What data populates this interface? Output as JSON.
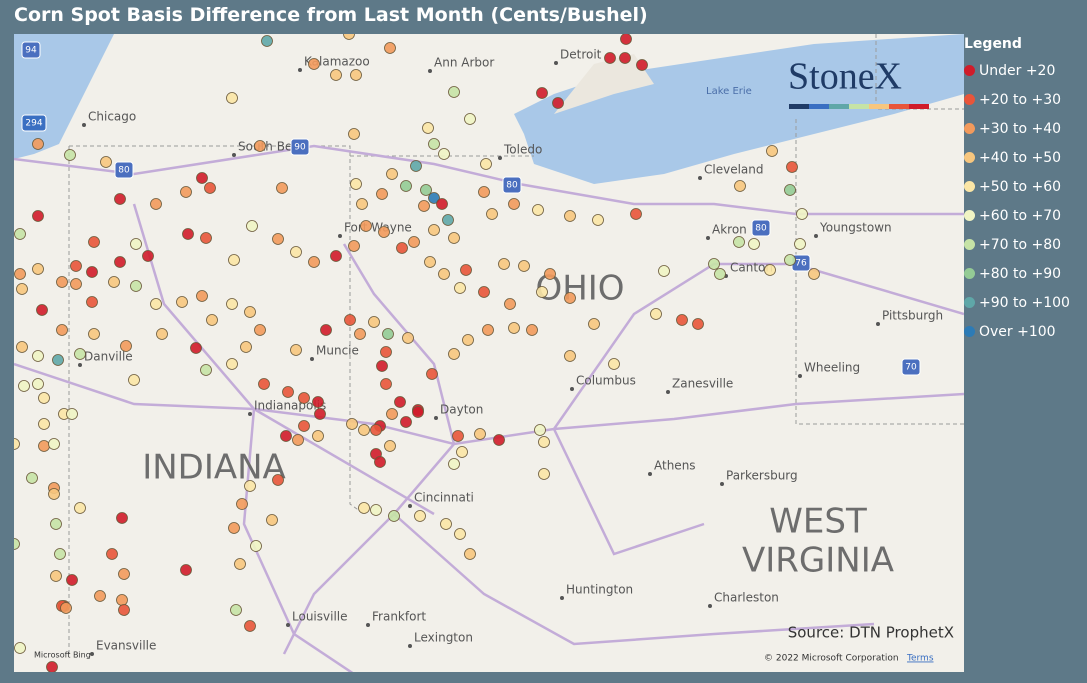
{
  "title": "Corn Spot Basis Difference from Last Month (Cents/Bushel)",
  "legend": {
    "title": "Legend",
    "items": [
      {
        "label": "Under +20",
        "color": "#d01c2a"
      },
      {
        "label": "+20 to +30",
        "color": "#e8553a"
      },
      {
        "label": "+30 to +40",
        "color": "#f29a5c"
      },
      {
        "label": "+40 to +50",
        "color": "#f7c67e"
      },
      {
        "label": "+50 to +60",
        "color": "#fbe6a6"
      },
      {
        "label": "+60 to +70",
        "color": "#f0f4c4"
      },
      {
        "label": "+70 to +80",
        "color": "#c6e3a6"
      },
      {
        "label": "+80 to +90",
        "color": "#94cb95"
      },
      {
        "label": "+90 to +100",
        "color": "#5fa7a8"
      },
      {
        "label": "Over +100",
        "color": "#2c7bb6"
      }
    ]
  },
  "map": {
    "cities": [
      "Kalamazoo",
      "Ann Arbor",
      "Detroit",
      "Chicago",
      "South Bend",
      "Toledo",
      "Cleveland",
      "Fort Wayne",
      "Akron",
      "Youngstown",
      "Canton",
      "Pittsburgh",
      "Muncie",
      "Columbus",
      "Zanesville",
      "Wheeling",
      "Indianapolis",
      "Dayton",
      "Athens",
      "Parkersburg",
      "Cincinnati",
      "Huntington",
      "Charleston",
      "Louisville",
      "Frankfort",
      "Evansville",
      "Lexington",
      "Danville"
    ],
    "states": [
      "INDIANA",
      "OHIO",
      "WEST",
      "VIRGINIA"
    ],
    "highways": [
      "94",
      "294",
      "80",
      "90",
      "80",
      "80",
      "76",
      "70"
    ],
    "lake": "Lake Erie"
  },
  "logo": "StoneX",
  "source": "Source: DTN ProphetX",
  "attribution": {
    "bing": "Microsoft Bing",
    "copyright": "© 2022 Microsoft Corporation",
    "terms": "Terms"
  }
}
